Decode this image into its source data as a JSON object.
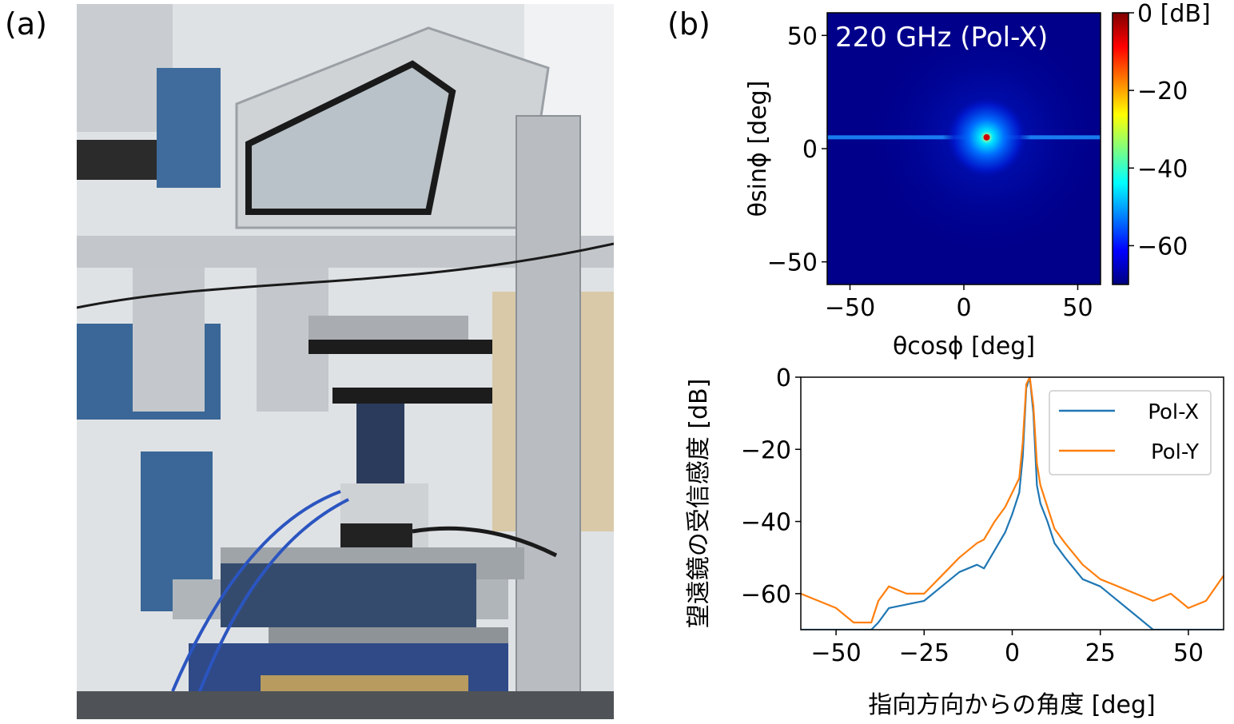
{
  "panel_labels": {
    "a": "(a)",
    "b": "(b)"
  },
  "colors": {
    "pol_x": "#1f77b4",
    "pol_y": "#ff7f0e",
    "map_background": "#00008b"
  },
  "photo": {
    "description_icon": "photo-of-measurement-apparatus"
  },
  "chart_data": [
    {
      "type": "heatmap",
      "title": "220 GHz (Pol-X)",
      "xlabel": "θcosϕ [deg]",
      "ylabel": "θsinϕ [deg]",
      "xlim": [
        -60,
        60
      ],
      "ylim": [
        -60,
        60
      ],
      "xticks": [
        -50,
        0,
        50
      ],
      "xtick_labels": [
        "−50",
        "0",
        "50"
      ],
      "yticks": [
        50,
        0,
        -50
      ],
      "ytick_labels": [
        "50",
        "0",
        "−50"
      ],
      "colorbar": {
        "range": [
          -70,
          0
        ],
        "ticks": [
          0,
          -20,
          -40,
          -60
        ],
        "tick_labels": [
          "0 [dB]",
          "−20",
          "−40",
          "−60"
        ],
        "colormap": "jet"
      },
      "peak": {
        "x": 10,
        "y": 5,
        "value": 0
      },
      "streak_y": 5
    },
    {
      "type": "line",
      "xlabel": "指向方向からの角度 [deg]",
      "ylabel": "望遠鏡の受信感度 [dB]",
      "xlim": [
        -60,
        60
      ],
      "ylim": [
        -70,
        0
      ],
      "xticks": [
        -50,
        -25,
        0,
        25,
        50
      ],
      "xtick_labels": [
        "−50",
        "−25",
        "0",
        "25",
        "50"
      ],
      "yticks": [
        0,
        -20,
        -40,
        -60
      ],
      "ytick_labels": [
        "0",
        "−20",
        "−40",
        "−60"
      ],
      "legend_position": "top-right",
      "series": [
        {
          "name": "Pol-X",
          "x": [
            -60,
            -55,
            -50,
            -45,
            -40,
            -38,
            -35,
            -30,
            -25,
            -20,
            -15,
            -10,
            -8,
            -5,
            -2,
            0,
            2,
            3,
            4,
            5,
            6,
            7,
            8,
            10,
            12,
            15,
            20,
            25,
            30,
            35,
            40,
            45,
            50,
            55,
            60
          ],
          "y": [
            -70,
            -70,
            -70,
            -70,
            -70,
            -68,
            -64,
            -63,
            -62,
            -58,
            -54,
            -52,
            -53,
            -48,
            -43,
            -38,
            -32,
            -22,
            -3,
            0,
            -10,
            -30,
            -35,
            -40,
            -46,
            -50,
            -56,
            -58,
            -62,
            -66,
            -70,
            -70,
            -70,
            -70,
            -70
          ]
        },
        {
          "name": "Pol-Y",
          "x": [
            -60,
            -55,
            -50,
            -45,
            -40,
            -38,
            -35,
            -30,
            -25,
            -20,
            -15,
            -10,
            -8,
            -5,
            -2,
            0,
            2,
            3,
            4,
            5,
            6,
            7,
            8,
            10,
            12,
            15,
            20,
            25,
            30,
            35,
            40,
            45,
            50,
            55,
            60
          ],
          "y": [
            -60,
            -62,
            -64,
            -68,
            -68,
            -62,
            -58,
            -60,
            -60,
            -55,
            -50,
            -46,
            -45,
            -40,
            -36,
            -32,
            -28,
            -18,
            -2,
            0,
            -8,
            -24,
            -30,
            -36,
            -42,
            -46,
            -52,
            -56,
            -58,
            -60,
            -62,
            -60,
            -64,
            -62,
            -55
          ]
        }
      ]
    }
  ]
}
